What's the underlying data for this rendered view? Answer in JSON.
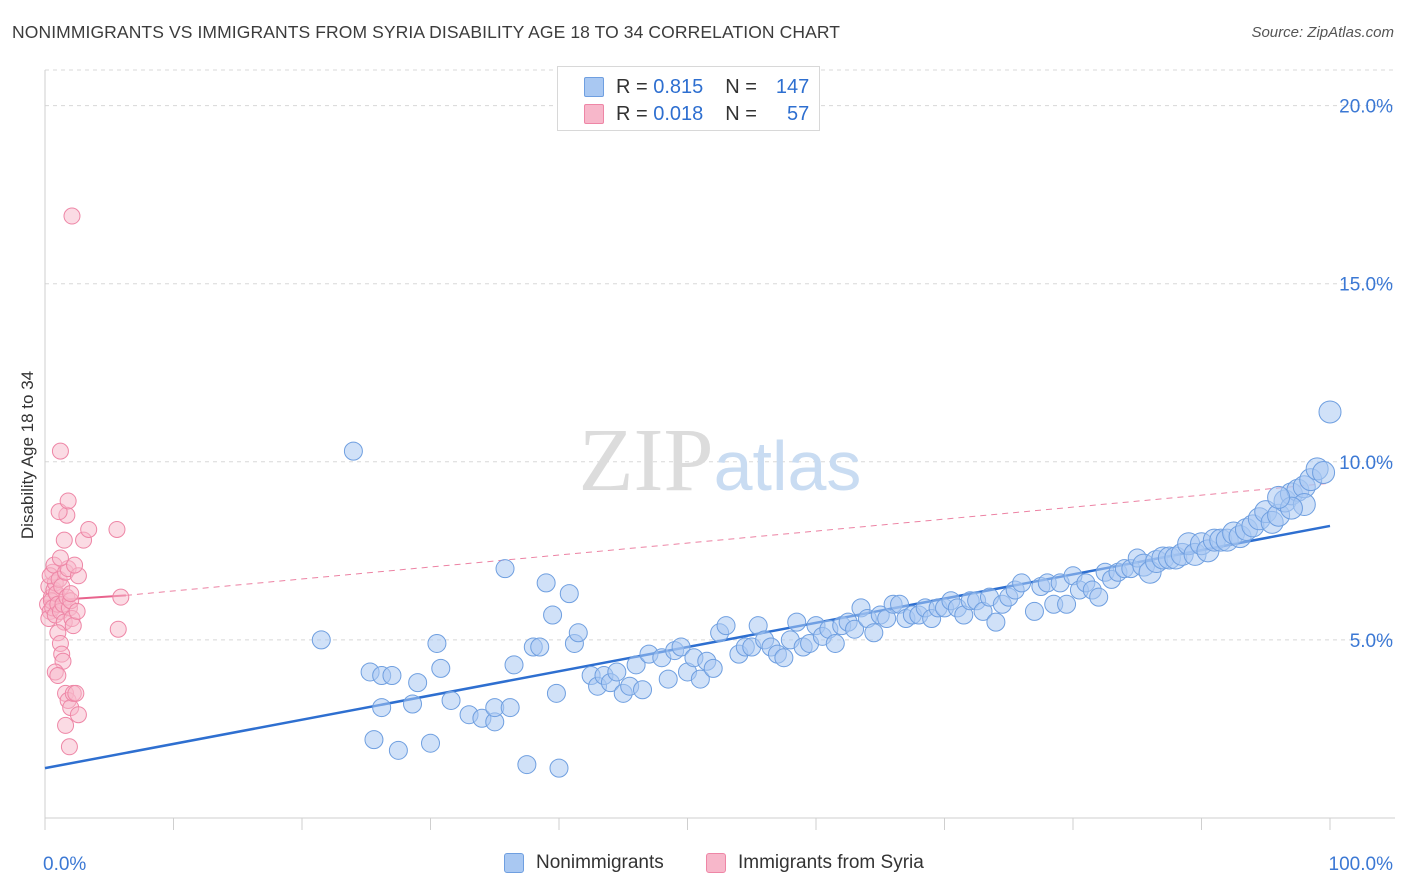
{
  "header": {
    "title": "NONIMMIGRANTS VS IMMIGRANTS FROM SYRIA DISABILITY AGE 18 TO 34 CORRELATION CHART",
    "source": "Source: ZipAtlas.com"
  },
  "legend_top": {
    "rows": [
      {
        "r_label": "R =",
        "r_value": "0.815",
        "n_label": "N =",
        "n_value": "147"
      },
      {
        "r_label": "R =",
        "r_value": "0.018",
        "n_label": "N =",
        "n_value": "57"
      }
    ]
  },
  "colors": {
    "blue_fill": "#a9c8f2",
    "blue_stroke": "#6f9fe0",
    "blue_line": "#2e6fd0",
    "pink_fill": "#f7b7ca",
    "pink_stroke": "#ee86a6",
    "pink_line": "#e8638d",
    "grid": "#d8d8d8",
    "tick_label": "#3b78d4"
  },
  "chart_data": {
    "type": "scatter",
    "title": "NONIMMIGRANTS VS IMMIGRANTS FROM SYRIA DISABILITY AGE 18 TO 34 CORRELATION CHART",
    "xlabel": "",
    "ylabel": "Disability Age 18 to 34",
    "xlim": [
      0,
      100
    ],
    "ylim": [
      0,
      21
    ],
    "x_tick_labels": [
      "0.0%",
      "100.0%"
    ],
    "y_ticks": [
      5,
      10,
      15,
      20
    ],
    "y_tick_labels": [
      "5.0%",
      "10.0%",
      "15.0%",
      "20.0%"
    ],
    "grid": "horizontal dashed",
    "legend_placement": "bottom-center",
    "watermark": "ZIPatlas",
    "series": [
      {
        "name": "Nonimmigrants",
        "r": 0.815,
        "n": 147,
        "trendline": {
          "x": [
            0,
            100
          ],
          "y": [
            1.4,
            8.2
          ]
        },
        "points": [
          [
            24.0,
            10.3
          ],
          [
            21.5,
            5.0
          ],
          [
            25.3,
            4.1
          ],
          [
            26.2,
            4.0
          ],
          [
            27.0,
            4.0
          ],
          [
            26.2,
            3.1
          ],
          [
            25.6,
            2.2
          ],
          [
            27.5,
            1.9
          ],
          [
            28.6,
            3.2
          ],
          [
            29.0,
            3.8
          ],
          [
            30.0,
            2.1
          ],
          [
            30.5,
            4.9
          ],
          [
            30.8,
            4.2
          ],
          [
            31.6,
            3.3
          ],
          [
            33.0,
            2.9
          ],
          [
            34.0,
            2.8
          ],
          [
            35.0,
            2.7
          ],
          [
            35.0,
            3.1
          ],
          [
            36.2,
            3.1
          ],
          [
            36.5,
            4.3
          ],
          [
            35.8,
            7.0
          ],
          [
            37.5,
            1.5
          ],
          [
            38.0,
            4.8
          ],
          [
            38.5,
            4.8
          ],
          [
            39.0,
            6.6
          ],
          [
            39.5,
            5.7
          ],
          [
            40.0,
            1.4
          ],
          [
            39.8,
            3.5
          ],
          [
            40.8,
            6.3
          ],
          [
            41.2,
            4.9
          ],
          [
            41.5,
            5.2
          ],
          [
            42.5,
            4.0
          ],
          [
            43.0,
            3.7
          ],
          [
            43.5,
            4.0
          ],
          [
            44.0,
            3.8
          ],
          [
            44.5,
            4.1
          ],
          [
            45.0,
            3.5
          ],
          [
            45.5,
            3.7
          ],
          [
            46.0,
            4.3
          ],
          [
            46.5,
            3.6
          ],
          [
            47.0,
            4.6
          ],
          [
            48.0,
            4.5
          ],
          [
            48.5,
            3.9
          ],
          [
            49.0,
            4.7
          ],
          [
            49.5,
            4.8
          ],
          [
            50.0,
            4.1
          ],
          [
            50.5,
            4.5
          ],
          [
            51.0,
            3.9
          ],
          [
            51.5,
            4.4
          ],
          [
            52.0,
            4.2
          ],
          [
            52.5,
            5.2
          ],
          [
            53.0,
            5.4
          ],
          [
            54.0,
            4.6
          ],
          [
            54.5,
            4.8
          ],
          [
            55.0,
            4.8
          ],
          [
            55.5,
            5.4
          ],
          [
            56.0,
            5.0
          ],
          [
            56.5,
            4.8
          ],
          [
            57.0,
            4.6
          ],
          [
            57.5,
            4.5
          ],
          [
            58.0,
            5.0
          ],
          [
            58.5,
            5.5
          ],
          [
            59.0,
            4.8
          ],
          [
            59.5,
            4.9
          ],
          [
            60.0,
            5.4
          ],
          [
            60.5,
            5.1
          ],
          [
            61.0,
            5.3
          ],
          [
            61.5,
            4.9
          ],
          [
            62.0,
            5.4
          ],
          [
            62.5,
            5.5
          ],
          [
            63.0,
            5.3
          ],
          [
            63.5,
            5.9
          ],
          [
            64.0,
            5.6
          ],
          [
            64.5,
            5.2
          ],
          [
            65.0,
            5.7
          ],
          [
            65.5,
            5.6
          ],
          [
            66.0,
            6.0
          ],
          [
            66.5,
            6.0
          ],
          [
            67.0,
            5.6
          ],
          [
            67.5,
            5.7
          ],
          [
            68.0,
            5.7
          ],
          [
            68.5,
            5.9
          ],
          [
            69.0,
            5.6
          ],
          [
            69.5,
            5.9
          ],
          [
            70.0,
            5.9
          ],
          [
            70.5,
            6.1
          ],
          [
            71.0,
            5.9
          ],
          [
            71.5,
            5.7
          ],
          [
            72.0,
            6.1
          ],
          [
            72.5,
            6.1
          ],
          [
            73.0,
            5.8
          ],
          [
            73.5,
            6.2
          ],
          [
            74.0,
            5.5
          ],
          [
            74.5,
            6.0
          ],
          [
            75.0,
            6.2
          ],
          [
            75.5,
            6.4
          ],
          [
            76.0,
            6.6
          ],
          [
            77.0,
            5.8
          ],
          [
            77.5,
            6.5
          ],
          [
            78.0,
            6.6
          ],
          [
            78.5,
            6.0
          ],
          [
            79.0,
            6.6
          ],
          [
            79.5,
            6.0
          ],
          [
            80.0,
            6.8
          ],
          [
            80.5,
            6.4
          ],
          [
            81.0,
            6.6
          ],
          [
            81.5,
            6.4
          ],
          [
            82.0,
            6.2
          ],
          [
            82.5,
            6.9
          ],
          [
            83.0,
            6.7
          ],
          [
            83.5,
            6.9
          ],
          [
            84.0,
            7.0
          ],
          [
            84.5,
            7.0
          ],
          [
            85.0,
            7.3
          ],
          [
            85.5,
            7.1
          ],
          [
            86.0,
            6.9
          ],
          [
            86.5,
            7.2
          ],
          [
            87.0,
            7.3
          ],
          [
            87.5,
            7.3
          ],
          [
            88.0,
            7.3
          ],
          [
            88.5,
            7.4
          ],
          [
            89.0,
            7.7
          ],
          [
            89.5,
            7.4
          ],
          [
            90.0,
            7.7
          ],
          [
            90.5,
            7.5
          ],
          [
            91.0,
            7.8
          ],
          [
            91.5,
            7.8
          ],
          [
            92.0,
            7.8
          ],
          [
            92.5,
            8.0
          ],
          [
            93.0,
            7.9
          ],
          [
            93.5,
            8.1
          ],
          [
            94.0,
            8.2
          ],
          [
            94.5,
            8.4
          ],
          [
            95.0,
            8.6
          ],
          [
            95.5,
            8.3
          ],
          [
            96.0,
            8.5
          ],
          [
            96.5,
            8.9
          ],
          [
            97.0,
            9.1
          ],
          [
            97.5,
            9.2
          ],
          [
            98.0,
            9.3
          ],
          [
            98.5,
            9.5
          ],
          [
            99.0,
            9.8
          ],
          [
            99.5,
            9.7
          ],
          [
            100.0,
            11.4
          ],
          [
            98.0,
            8.8
          ],
          [
            97.0,
            8.7
          ],
          [
            96.0,
            9.0
          ]
        ]
      },
      {
        "name": "Immigrants from Syria",
        "r": 0.018,
        "n": 57,
        "trendline": {
          "x": [
            0,
            6.3
          ],
          "y": [
            6.1,
            6.25
          ]
        },
        "trendline_extended": {
          "x": [
            6.3,
            100
          ],
          "y": [
            6.25,
            9.4
          ]
        },
        "points": [
          [
            0.2,
            6.0
          ],
          [
            0.3,
            6.5
          ],
          [
            0.4,
            5.8
          ],
          [
            0.5,
            6.2
          ],
          [
            0.6,
            6.9
          ],
          [
            0.7,
            6.4
          ],
          [
            0.8,
            6.6
          ],
          [
            0.3,
            5.6
          ],
          [
            0.4,
            6.8
          ],
          [
            0.5,
            6.1
          ],
          [
            0.6,
            5.9
          ],
          [
            0.7,
            7.1
          ],
          [
            0.8,
            5.7
          ],
          [
            0.9,
            6.3
          ],
          [
            1.0,
            6.0
          ],
          [
            1.1,
            6.7
          ],
          [
            1.2,
            5.8
          ],
          [
            1.3,
            6.5
          ],
          [
            1.4,
            6.0
          ],
          [
            1.5,
            5.5
          ],
          [
            1.6,
            6.9
          ],
          [
            1.7,
            6.2
          ],
          [
            1.8,
            7.0
          ],
          [
            1.9,
            5.9
          ],
          [
            2.0,
            6.1
          ],
          [
            2.1,
            5.6
          ],
          [
            1.0,
            5.2
          ],
          [
            1.2,
            4.9
          ],
          [
            1.3,
            4.6
          ],
          [
            1.4,
            4.4
          ],
          [
            0.8,
            4.1
          ],
          [
            1.0,
            4.0
          ],
          [
            1.6,
            3.5
          ],
          [
            1.8,
            3.3
          ],
          [
            2.0,
            3.1
          ],
          [
            2.2,
            3.5
          ],
          [
            2.4,
            3.5
          ],
          [
            2.6,
            2.9
          ],
          [
            1.6,
            2.6
          ],
          [
            1.9,
            2.0
          ],
          [
            1.2,
            7.3
          ],
          [
            1.5,
            7.8
          ],
          [
            1.7,
            8.5
          ],
          [
            1.1,
            8.6
          ],
          [
            1.8,
            8.9
          ],
          [
            1.2,
            10.3
          ],
          [
            2.1,
            16.9
          ],
          [
            3.0,
            7.8
          ],
          [
            3.4,
            8.1
          ],
          [
            5.6,
            8.1
          ],
          [
            5.7,
            5.3
          ],
          [
            5.9,
            6.2
          ],
          [
            2.6,
            6.8
          ],
          [
            2.2,
            5.4
          ],
          [
            2.0,
            6.3
          ],
          [
            2.3,
            7.1
          ],
          [
            2.5,
            5.8
          ]
        ]
      }
    ]
  },
  "legend_bottom": {
    "items": [
      "Nonimmigrants",
      "Immigrants from Syria"
    ]
  }
}
